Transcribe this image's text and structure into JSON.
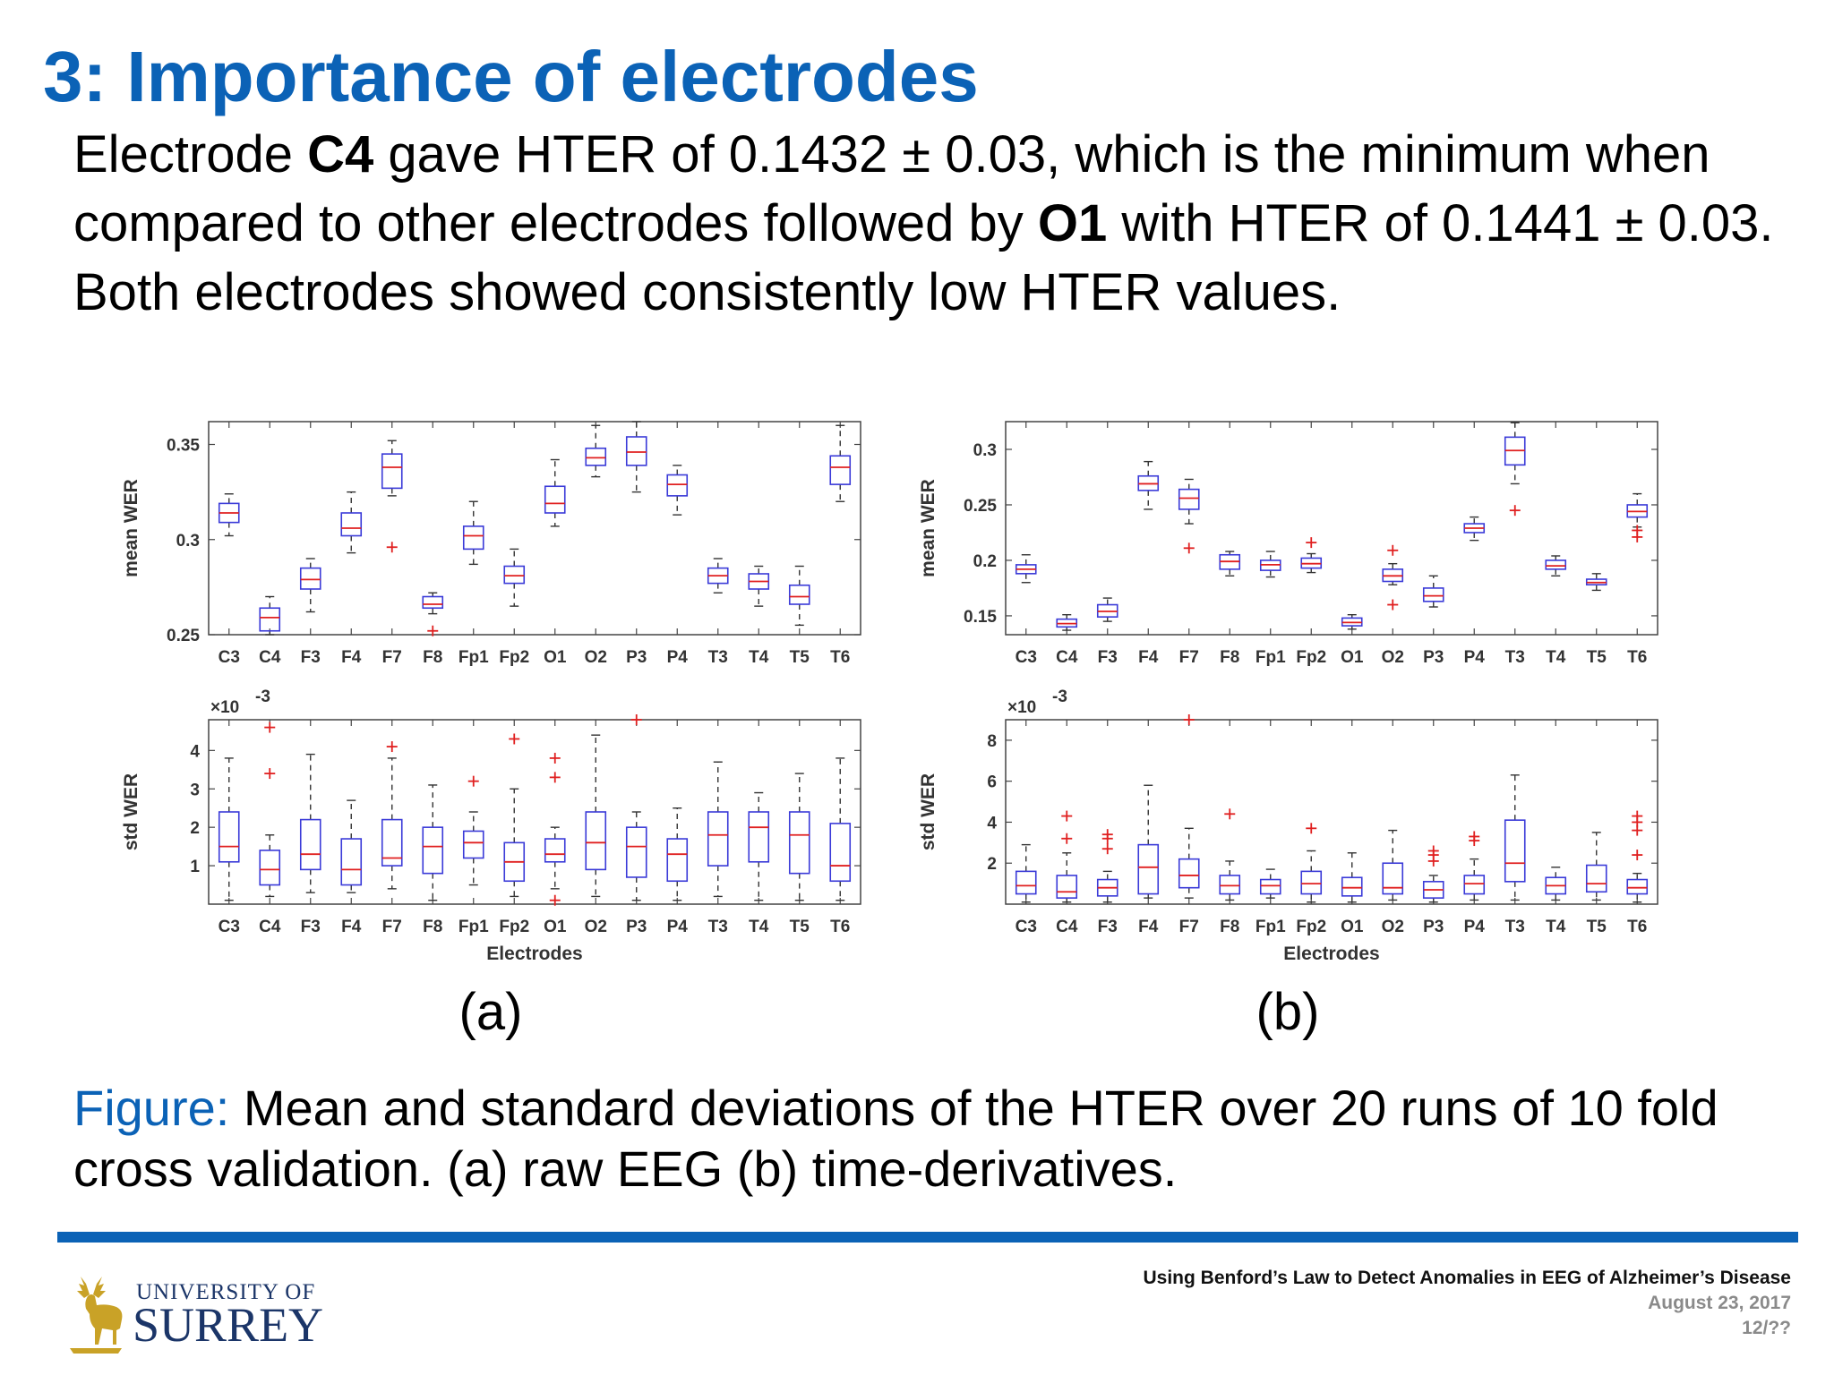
{
  "slide": {
    "title": "3: Importance of electrodes",
    "body": {
      "p1": "Electrode ",
      "b1": "C4",
      "p2": " gave HTER of 0.1432 ± 0.03, which is the minimum when compared to other electrodes followed by ",
      "b2": "O1",
      "p3": " with HTER of 0.1441 ± 0.03. Both electrodes showed consistently low HTER values."
    },
    "caption": {
      "label": "Figure:",
      "text": " Mean and standard deviations of the HTER over 20 runs of 10 fold cross validation. (a) raw EEG (b) time-derivatives."
    },
    "footer": {
      "title": "Using Benford’s Law to Detect Anomalies in EEG of Alzheimer’s Disease",
      "date": "August 23, 2017",
      "page": "12/??"
    },
    "logo": {
      "line1": "UNIVERSITY OF",
      "line2": "SURREY",
      "icon": "stag-icon"
    }
  },
  "colors": {
    "title": "#0b62b6",
    "box": "#3a3ad8",
    "median": "#e02020",
    "outlier": "#e02020",
    "whisker": "#333333",
    "footer_bar": "#0b62b6",
    "logo_text": "#1b3568",
    "logo_icon": "#c9a227"
  },
  "chart_data": [
    {
      "id": "a-mean",
      "panel": "(a)",
      "type": "boxplot",
      "xlabel": "",
      "ylabel": "mean WER",
      "ylim": [
        0.25,
        0.362
      ],
      "yticks": [
        0.25,
        0.3,
        0.35
      ],
      "ytick_labels": [
        "0.25",
        "0.3",
        "0.35"
      ],
      "multiplier": "",
      "categories": [
        "C3",
        "C4",
        "F3",
        "F4",
        "F7",
        "F8",
        "Fp1",
        "Fp2",
        "O1",
        "O2",
        "P3",
        "P4",
        "T3",
        "T4",
        "T5",
        "T6"
      ],
      "boxes": [
        {
          "min": 0.302,
          "q1": 0.309,
          "median": 0.314,
          "q3": 0.319,
          "max": 0.324,
          "outliers": []
        },
        {
          "min": 0.25,
          "q1": 0.252,
          "median": 0.259,
          "q3": 0.264,
          "max": 0.27,
          "outliers": []
        },
        {
          "min": 0.262,
          "q1": 0.274,
          "median": 0.279,
          "q3": 0.285,
          "max": 0.29,
          "outliers": []
        },
        {
          "min": 0.293,
          "q1": 0.302,
          "median": 0.306,
          "q3": 0.314,
          "max": 0.325,
          "outliers": []
        },
        {
          "min": 0.323,
          "q1": 0.327,
          "median": 0.338,
          "q3": 0.345,
          "max": 0.352,
          "outliers": [
            0.296
          ]
        },
        {
          "min": 0.261,
          "q1": 0.264,
          "median": 0.266,
          "q3": 0.27,
          "max": 0.272,
          "outliers": [
            0.252
          ]
        },
        {
          "min": 0.287,
          "q1": 0.295,
          "median": 0.302,
          "q3": 0.307,
          "max": 0.32,
          "outliers": []
        },
        {
          "min": 0.265,
          "q1": 0.277,
          "median": 0.281,
          "q3": 0.286,
          "max": 0.295,
          "outliers": []
        },
        {
          "min": 0.307,
          "q1": 0.314,
          "median": 0.319,
          "q3": 0.328,
          "max": 0.342,
          "outliers": []
        },
        {
          "min": 0.333,
          "q1": 0.339,
          "median": 0.343,
          "q3": 0.348,
          "max": 0.36,
          "outliers": []
        },
        {
          "min": 0.325,
          "q1": 0.339,
          "median": 0.346,
          "q3": 0.354,
          "max": 0.362,
          "outliers": []
        },
        {
          "min": 0.313,
          "q1": 0.323,
          "median": 0.329,
          "q3": 0.334,
          "max": 0.339,
          "outliers": []
        },
        {
          "min": 0.272,
          "q1": 0.277,
          "median": 0.281,
          "q3": 0.285,
          "max": 0.29,
          "outliers": []
        },
        {
          "min": 0.265,
          "q1": 0.274,
          "median": 0.278,
          "q3": 0.282,
          "max": 0.286,
          "outliers": []
        },
        {
          "min": 0.255,
          "q1": 0.266,
          "median": 0.27,
          "q3": 0.276,
          "max": 0.286,
          "outliers": []
        },
        {
          "min": 0.32,
          "q1": 0.329,
          "median": 0.338,
          "q3": 0.344,
          "max": 0.36,
          "outliers": []
        }
      ]
    },
    {
      "id": "a-std",
      "panel": "(a)",
      "type": "boxplot",
      "xlabel": "Electrodes",
      "ylabel": "std WER",
      "ylim": [
        0,
        4.8
      ],
      "yticks": [
        1,
        2,
        3,
        4
      ],
      "ytick_labels": [
        "1",
        "2",
        "3",
        "4"
      ],
      "multiplier": "×10",
      "multiplier_exp": "-3",
      "categories": [
        "C3",
        "C4",
        "F3",
        "F4",
        "F7",
        "F8",
        "Fp1",
        "Fp2",
        "O1",
        "O2",
        "P3",
        "P4",
        "T3",
        "T4",
        "T5",
        "T6"
      ],
      "boxes": [
        {
          "min": 0.1,
          "q1": 1.1,
          "median": 1.5,
          "q3": 2.4,
          "max": 3.8,
          "outliers": []
        },
        {
          "min": 0.2,
          "q1": 0.5,
          "median": 0.9,
          "q3": 1.4,
          "max": 1.8,
          "outliers": [
            4.6,
            3.4
          ]
        },
        {
          "min": 0.3,
          "q1": 0.9,
          "median": 1.3,
          "q3": 2.2,
          "max": 3.9,
          "outliers": []
        },
        {
          "min": 0.3,
          "q1": 0.5,
          "median": 0.9,
          "q3": 1.7,
          "max": 2.7,
          "outliers": []
        },
        {
          "min": 0.4,
          "q1": 1.0,
          "median": 1.2,
          "q3": 2.2,
          "max": 3.8,
          "outliers": [
            4.1
          ]
        },
        {
          "min": 0.1,
          "q1": 0.8,
          "median": 1.5,
          "q3": 2.0,
          "max": 3.1,
          "outliers": []
        },
        {
          "min": 0.5,
          "q1": 1.2,
          "median": 1.6,
          "q3": 1.9,
          "max": 2.4,
          "outliers": [
            3.2
          ]
        },
        {
          "min": 0.2,
          "q1": 0.6,
          "median": 1.1,
          "q3": 1.6,
          "max": 3.0,
          "outliers": [
            4.3
          ]
        },
        {
          "min": 0.4,
          "q1": 1.1,
          "median": 1.3,
          "q3": 1.7,
          "max": 2.0,
          "outliers": [
            3.8,
            3.3,
            0.1
          ]
        },
        {
          "min": 0.2,
          "q1": 0.9,
          "median": 1.6,
          "q3": 2.4,
          "max": 4.4,
          "outliers": []
        },
        {
          "min": 0.1,
          "q1": 0.7,
          "median": 1.5,
          "q3": 2.0,
          "max": 2.4,
          "outliers": [
            4.8
          ]
        },
        {
          "min": 0.1,
          "q1": 0.6,
          "median": 1.3,
          "q3": 1.7,
          "max": 2.5,
          "outliers": []
        },
        {
          "min": 0.2,
          "q1": 1.0,
          "median": 1.8,
          "q3": 2.4,
          "max": 3.7,
          "outliers": []
        },
        {
          "min": 0.1,
          "q1": 1.1,
          "median": 2.0,
          "q3": 2.4,
          "max": 2.9,
          "outliers": []
        },
        {
          "min": 0.1,
          "q1": 0.8,
          "median": 1.8,
          "q3": 2.4,
          "max": 3.4,
          "outliers": []
        },
        {
          "min": 0.1,
          "q1": 0.6,
          "median": 1.0,
          "q3": 2.1,
          "max": 3.8,
          "outliers": []
        }
      ]
    },
    {
      "id": "b-mean",
      "panel": "(b)",
      "type": "boxplot",
      "xlabel": "",
      "ylabel": "mean WER",
      "ylim": [
        0.133,
        0.325
      ],
      "yticks": [
        0.15,
        0.2,
        0.25,
        0.3
      ],
      "ytick_labels": [
        "0.15",
        "0.2",
        "0.25",
        "0.3"
      ],
      "multiplier": "",
      "categories": [
        "C3",
        "C4",
        "F3",
        "F4",
        "F7",
        "F8",
        "Fp1",
        "Fp2",
        "O1",
        "O2",
        "P3",
        "P4",
        "T3",
        "T4",
        "T5",
        "T6"
      ],
      "boxes": [
        {
          "min": 0.18,
          "q1": 0.188,
          "median": 0.192,
          "q3": 0.196,
          "max": 0.205,
          "outliers": []
        },
        {
          "min": 0.137,
          "q1": 0.14,
          "median": 0.143,
          "q3": 0.147,
          "max": 0.151,
          "outliers": []
        },
        {
          "min": 0.145,
          "q1": 0.149,
          "median": 0.154,
          "q3": 0.16,
          "max": 0.166,
          "outliers": []
        },
        {
          "min": 0.246,
          "q1": 0.263,
          "median": 0.269,
          "q3": 0.276,
          "max": 0.289,
          "outliers": []
        },
        {
          "min": 0.233,
          "q1": 0.246,
          "median": 0.256,
          "q3": 0.264,
          "max": 0.273,
          "outliers": [
            0.211
          ]
        },
        {
          "min": 0.186,
          "q1": 0.192,
          "median": 0.199,
          "q3": 0.205,
          "max": 0.208,
          "outliers": []
        },
        {
          "min": 0.185,
          "q1": 0.191,
          "median": 0.196,
          "q3": 0.2,
          "max": 0.208,
          "outliers": []
        },
        {
          "min": 0.189,
          "q1": 0.193,
          "median": 0.197,
          "q3": 0.202,
          "max": 0.206,
          "outliers": [
            0.216
          ]
        },
        {
          "min": 0.138,
          "q1": 0.141,
          "median": 0.144,
          "q3": 0.148,
          "max": 0.151,
          "outliers": []
        },
        {
          "min": 0.178,
          "q1": 0.181,
          "median": 0.186,
          "q3": 0.192,
          "max": 0.197,
          "outliers": [
            0.209,
            0.16
          ]
        },
        {
          "min": 0.158,
          "q1": 0.163,
          "median": 0.168,
          "q3": 0.175,
          "max": 0.186,
          "outliers": []
        },
        {
          "min": 0.218,
          "q1": 0.225,
          "median": 0.229,
          "q3": 0.233,
          "max": 0.239,
          "outliers": []
        },
        {
          "min": 0.269,
          "q1": 0.286,
          "median": 0.299,
          "q3": 0.311,
          "max": 0.324,
          "outliers": [
            0.245
          ]
        },
        {
          "min": 0.186,
          "q1": 0.192,
          "median": 0.195,
          "q3": 0.2,
          "max": 0.204,
          "outliers": []
        },
        {
          "min": 0.173,
          "q1": 0.178,
          "median": 0.18,
          "q3": 0.183,
          "max": 0.188,
          "outliers": []
        },
        {
          "min": 0.23,
          "q1": 0.239,
          "median": 0.244,
          "q3": 0.25,
          "max": 0.26,
          "outliers": [
            0.227,
            0.221
          ]
        }
      ]
    },
    {
      "id": "b-std",
      "panel": "(b)",
      "type": "boxplot",
      "xlabel": "Electrodes",
      "ylabel": "std WER",
      "ylim": [
        0,
        9
      ],
      "yticks": [
        2,
        4,
        6,
        8
      ],
      "ytick_labels": [
        "2",
        "4",
        "6",
        "8"
      ],
      "multiplier": "×10",
      "multiplier_exp": "-3",
      "categories": [
        "C3",
        "C4",
        "F3",
        "F4",
        "F7",
        "F8",
        "Fp1",
        "Fp2",
        "O1",
        "O2",
        "P3",
        "P4",
        "T3",
        "T4",
        "T5",
        "T6"
      ],
      "boxes": [
        {
          "min": 0.1,
          "q1": 0.5,
          "median": 0.9,
          "q3": 1.6,
          "max": 2.9,
          "outliers": []
        },
        {
          "min": 0.1,
          "q1": 0.3,
          "median": 0.6,
          "q3": 1.4,
          "max": 2.5,
          "outliers": [
            4.3,
            3.2
          ]
        },
        {
          "min": 0.1,
          "q1": 0.4,
          "median": 0.8,
          "q3": 1.2,
          "max": 1.6,
          "outliers": [
            3.4,
            3.2,
            2.7
          ]
        },
        {
          "min": 0.3,
          "q1": 0.5,
          "median": 1.8,
          "q3": 2.9,
          "max": 5.8,
          "outliers": []
        },
        {
          "min": 0.3,
          "q1": 0.8,
          "median": 1.4,
          "q3": 2.2,
          "max": 3.7,
          "outliers": [
            9.0
          ]
        },
        {
          "min": 0.2,
          "q1": 0.5,
          "median": 0.9,
          "q3": 1.4,
          "max": 2.1,
          "outliers": [
            4.4
          ]
        },
        {
          "min": 0.3,
          "q1": 0.5,
          "median": 0.9,
          "q3": 1.2,
          "max": 1.7,
          "outliers": []
        },
        {
          "min": 0.1,
          "q1": 0.5,
          "median": 1.0,
          "q3": 1.6,
          "max": 2.6,
          "outliers": [
            3.7
          ]
        },
        {
          "min": 0.1,
          "q1": 0.4,
          "median": 0.8,
          "q3": 1.3,
          "max": 2.5,
          "outliers": []
        },
        {
          "min": 0.2,
          "q1": 0.5,
          "median": 0.8,
          "q3": 2.0,
          "max": 3.6,
          "outliers": []
        },
        {
          "min": 0.1,
          "q1": 0.3,
          "median": 0.7,
          "q3": 1.1,
          "max": 1.4,
          "outliers": [
            2.6,
            2.4,
            2.1
          ]
        },
        {
          "min": 0.2,
          "q1": 0.5,
          "median": 1.0,
          "q3": 1.4,
          "max": 2.2,
          "outliers": [
            3.3,
            3.1
          ]
        },
        {
          "min": 0.2,
          "q1": 1.1,
          "median": 2.0,
          "q3": 4.1,
          "max": 6.3,
          "outliers": []
        },
        {
          "min": 0.2,
          "q1": 0.5,
          "median": 0.9,
          "q3": 1.3,
          "max": 1.8,
          "outliers": []
        },
        {
          "min": 0.2,
          "q1": 0.6,
          "median": 1.0,
          "q3": 1.9,
          "max": 3.5,
          "outliers": []
        },
        {
          "min": 0.1,
          "q1": 0.5,
          "median": 0.8,
          "q3": 1.2,
          "max": 1.5,
          "outliers": [
            4.3,
            4.0,
            3.6,
            2.4
          ]
        }
      ]
    }
  ],
  "subfigures": [
    "(a)",
    "(b)"
  ]
}
